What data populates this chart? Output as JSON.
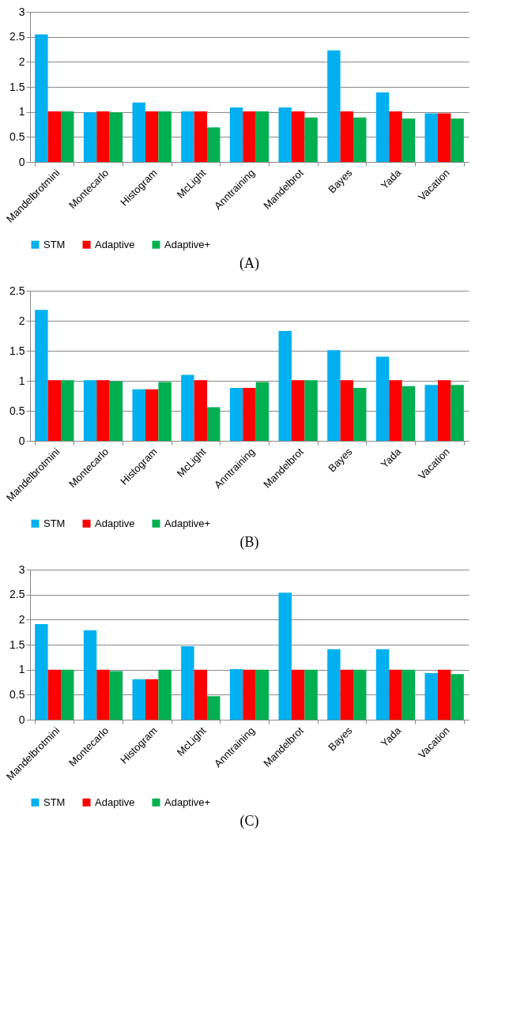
{
  "chart_data": [
    {
      "type": "bar",
      "categories": [
        "Mandelbrotmini",
        "Montecarlo",
        "Histogram",
        "McLight",
        "Anntraining",
        "Mandelbrot",
        "Bayes",
        "Yada",
        "Vacation"
      ],
      "series": [
        {
          "name": "STM",
          "color": "#00b0f0",
          "values": [
            2.55,
            0.99,
            1.19,
            1.01,
            1.09,
            1.09,
            2.23,
            1.39,
            0.97
          ]
        },
        {
          "name": "Adaptive",
          "color": "#ff0000",
          "values": [
            1.01,
            1.01,
            1.01,
            1.01,
            1.01,
            1.01,
            1.01,
            1.01,
            0.97
          ]
        },
        {
          "name": "Adaptive+",
          "color": "#00b050",
          "values": [
            1.01,
            0.99,
            1.01,
            0.69,
            1.01,
            0.89,
            0.89,
            0.87,
            0.87
          ]
        }
      ],
      "ylim": [
        0,
        3
      ],
      "yticks": [
        0,
        0.5,
        1,
        1.5,
        2,
        2.5,
        3
      ],
      "grid": "y",
      "legend": "bottom",
      "annotations": [
        "(A)"
      ]
    },
    {
      "type": "bar",
      "categories": [
        "Mandelbrotmini",
        "Montecarlo",
        "Histogram",
        "McLight",
        "Anntraining",
        "Mandelbrot",
        "Bayes",
        "Yada",
        "Vacation"
      ],
      "series": [
        {
          "name": "STM",
          "color": "#00b0f0",
          "values": [
            2.18,
            1.01,
            0.86,
            1.1,
            0.88,
            1.83,
            1.51,
            1.4,
            0.93
          ]
        },
        {
          "name": "Adaptive",
          "color": "#ff0000",
          "values": [
            1.01,
            1.01,
            0.86,
            1.01,
            0.88,
            1.01,
            1.01,
            1.01,
            1.01
          ]
        },
        {
          "name": "Adaptive+",
          "color": "#00b050",
          "values": [
            1.01,
            0.99,
            0.98,
            0.56,
            0.98,
            1.01,
            0.88,
            0.91,
            0.93
          ]
        }
      ],
      "ylim": [
        0,
        2.5
      ],
      "yticks": [
        0,
        0.5,
        1,
        1.5,
        2,
        2.5
      ],
      "grid": "y",
      "legend": "bottom",
      "annotations": [
        "(B)"
      ]
    },
    {
      "type": "bar",
      "categories": [
        "Mandelbrotmini",
        "Montecarlo",
        "Histogram",
        "McLight",
        "Anntraining",
        "Mandelbrot",
        "Bayes",
        "Yada",
        "Vacation"
      ],
      "series": [
        {
          "name": "STM",
          "color": "#00b0f0",
          "values": [
            1.91,
            1.79,
            0.81,
            1.47,
            1.01,
            2.54,
            1.41,
            1.41,
            0.93
          ]
        },
        {
          "name": "Adaptive",
          "color": "#ff0000",
          "values": [
            1,
            1,
            0.81,
            1,
            1,
            1,
            1,
            1,
            1
          ]
        },
        {
          "name": "Adaptive+",
          "color": "#00b050",
          "values": [
            1,
            0.97,
            1,
            0.47,
            1,
            1,
            1,
            1,
            0.91
          ]
        }
      ],
      "ylim": [
        0,
        3
      ],
      "yticks": [
        0,
        0.5,
        1,
        1.5,
        2,
        2.5,
        3
      ],
      "grid": "y",
      "legend": "bottom",
      "annotations": [
        "(C)"
      ]
    }
  ]
}
